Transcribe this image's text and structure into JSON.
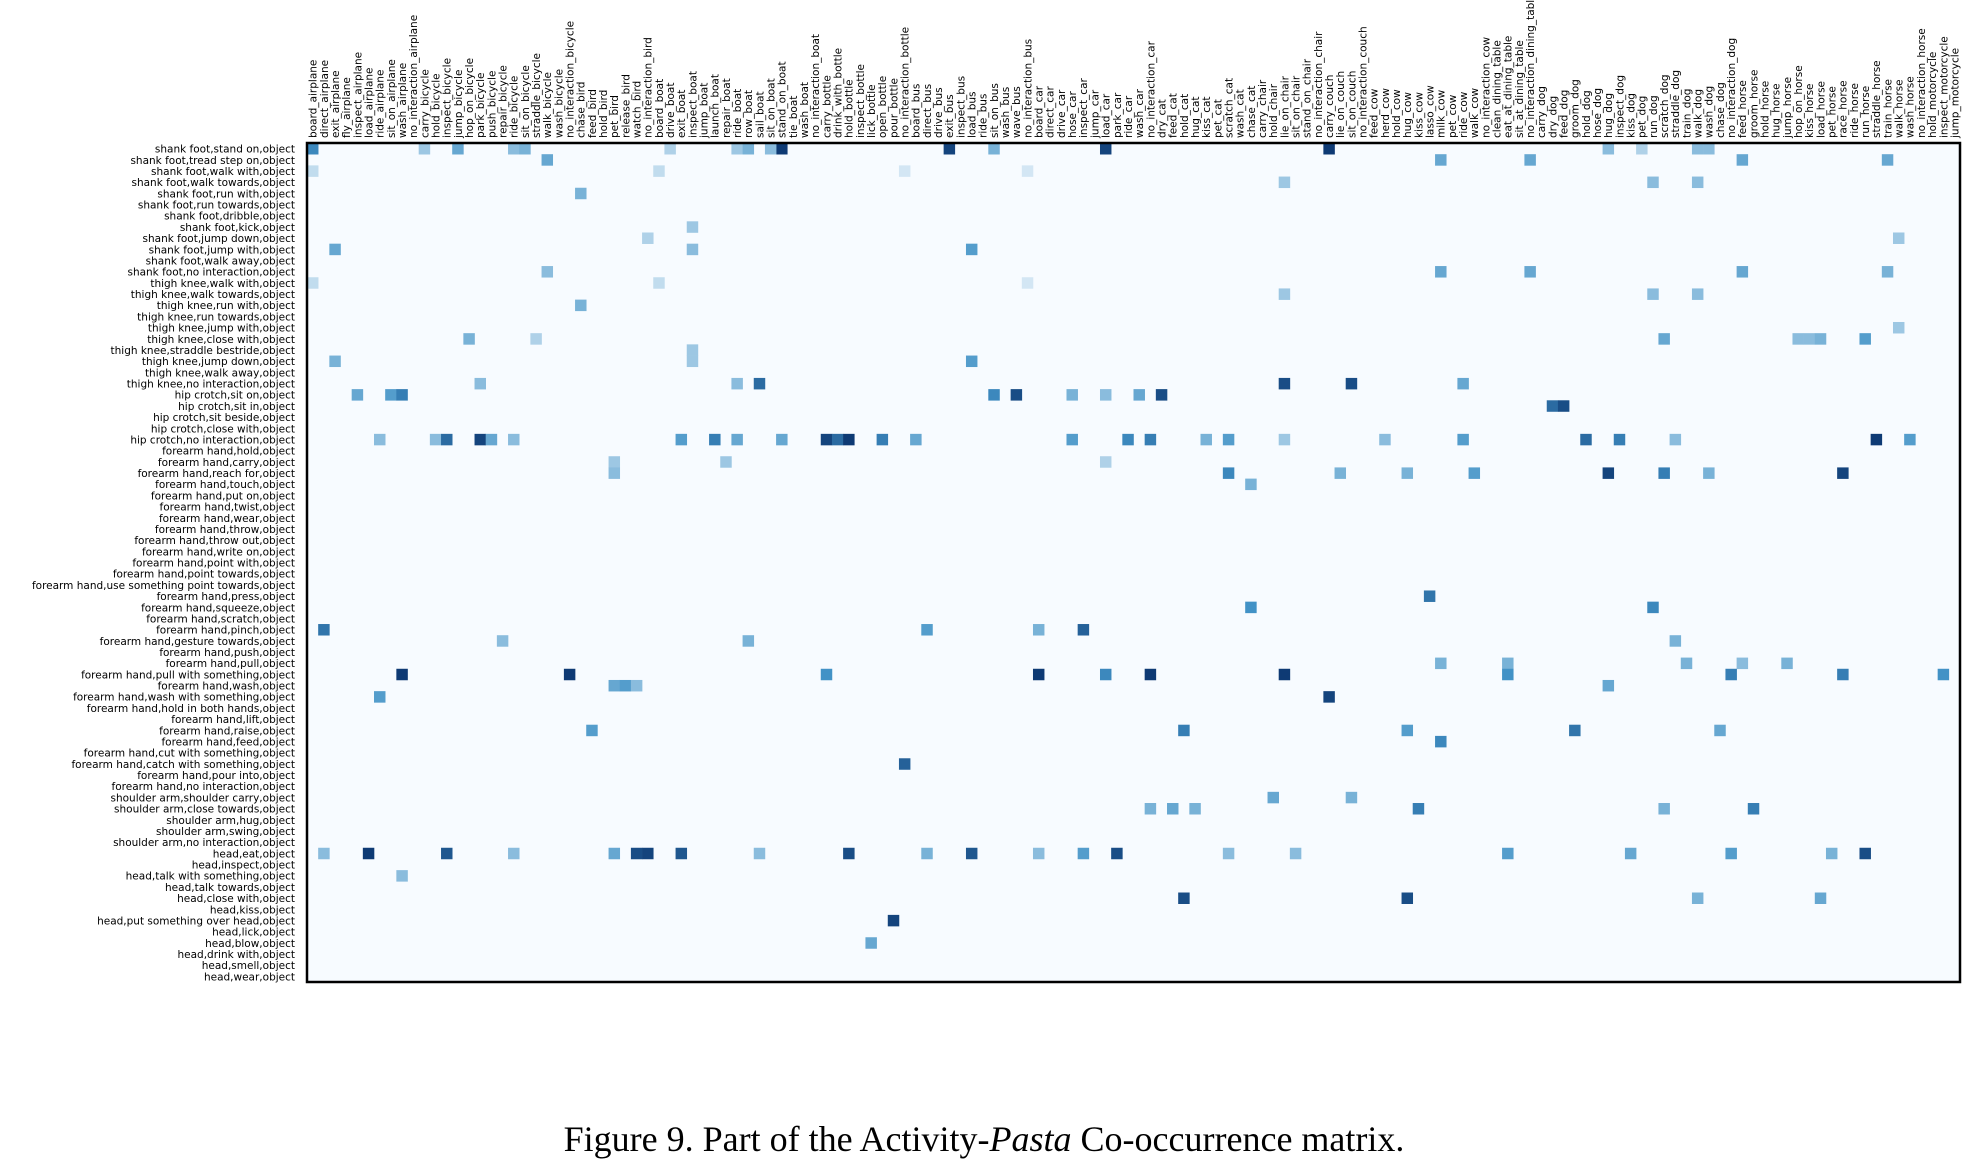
{
  "caption": {
    "prefix": "Figure 9. Part of the Activity-",
    "italic": "Pasta",
    "suffix": " Co-occurrence matrix."
  },
  "colors": {
    "low": "#f7fbff",
    "high": "#08306b",
    "border": "#000000",
    "text": "#000000"
  },
  "chart_data": {
    "type": "heatmap",
    "title": "",
    "colormap": "Blues",
    "x_tick_position": "top",
    "x_labels": [
      "board_airplane",
      "direct_airplane",
      "exit_airplane",
      "fly_airplane",
      "inspect_airplane",
      "load_airplane",
      "ride_airplane",
      "sit_on_airplane",
      "wash_airplane",
      "no_interaction_airplane",
      "carry_bicycle",
      "hold_bicycle",
      "inspect_bicycle",
      "jump_bicycle",
      "hop_on_bicycle",
      "park_bicycle",
      "push_bicycle",
      "repair_bicycle",
      "ride_bicycle",
      "sit_on_bicycle",
      "straddle_bicycle",
      "walk_bicycle",
      "wash_bicycle",
      "no_interaction_bicycle",
      "chase_bird",
      "feed_bird",
      "hold_bird",
      "pet_bird",
      "release_bird",
      "watch_bird",
      "no_interaction_bird",
      "board_boat",
      "drive_boat",
      "exit_boat",
      "inspect_boat",
      "jump_boat",
      "launch_boat",
      "repair_boat",
      "ride_boat",
      "row_boat",
      "sail_boat",
      "sit_on_boat",
      "stand_on_boat",
      "tie_boat",
      "wash_boat",
      "no_interaction_boat",
      "carry_bottle",
      "drink_with_bottle",
      "hold_bottle",
      "inspect_bottle",
      "lick_bottle",
      "open_bottle",
      "pour_bottle",
      "no_interaction_bottle",
      "board_bus",
      "direct_bus",
      "drive_bus",
      "exit_bus",
      "inspect_bus",
      "load_bus",
      "ride_bus",
      "sit_on_bus",
      "wash_bus",
      "wave_bus",
      "no_interaction_bus",
      "board_car",
      "direct_car",
      "drive_car",
      "hose_car",
      "inspect_car",
      "jump_car",
      "load_car",
      "park_car",
      "ride_car",
      "wash_car",
      "no_interaction_car",
      "dry_cat",
      "feed_cat",
      "hold_cat",
      "hug_cat",
      "kiss_cat",
      "pet_cat",
      "scratch_cat",
      "wash_cat",
      "chase_cat",
      "carry_chair",
      "hold_chair",
      "lie_on_chair",
      "sit_on_chair",
      "stand_on_chair",
      "no_interaction_chair",
      "carry_couch",
      "lie_on_couch",
      "sit_on_couch",
      "no_interaction_couch",
      "feed_cow",
      "herd_cow",
      "hold_cow",
      "hug_cow",
      "kiss_cow",
      "lasso_cow",
      "milk_cow",
      "pet_cow",
      "ride_cow",
      "walk_cow",
      "no_interaction_cow",
      "clean_dining_table",
      "eat_at_dining_table",
      "sit_at_dining_table",
      "no_interaction_dining_table",
      "carry_dog",
      "dry_dog",
      "feed_dog",
      "groom_dog",
      "hold_dog",
      "hose_dog",
      "hug_dog",
      "inspect_dog",
      "kiss_dog",
      "pet_dog",
      "run_dog",
      "scratch_dog",
      "straddle_dog",
      "train_dog",
      "walk_dog",
      "wash_dog",
      "chase_dog",
      "no_interaction_dog",
      "feed_horse",
      "groom_horse",
      "hold_horse",
      "hug_horse",
      "jump_horse",
      "hop_on_horse",
      "kiss_horse",
      "load_horse",
      "pet_horse",
      "race_horse",
      "ride_horse",
      "run_horse",
      "straddle_horse",
      "train_horse",
      "walk_horse",
      "wash_horse",
      "no_interaction_horse",
      "hold_motorcycle",
      "inspect_motorcycle",
      "jump_motorcycle"
    ],
    "y_labels": [
      "shank foot,stand on,object",
      "shank foot,tread step on,object",
      "shank foot,walk with,object",
      "shank foot,walk towards,object",
      "shank foot,run with,object",
      "shank foot,run towards,object",
      "shank foot,dribble,object",
      "shank foot,kick,object",
      "shank foot,jump down,object",
      "shank foot,jump with,object",
      "shank foot,walk away,object",
      "shank foot,no interaction,object",
      "thigh knee,walk with,object",
      "thigh knee,walk towards,object",
      "thigh knee,run with,object",
      "thigh knee,run towards,object",
      "thigh knee,jump with,object",
      "thigh knee,close with,object",
      "thigh knee,straddle bestride,object",
      "thigh knee,jump down,object",
      "thigh knee,walk away,object",
      "thigh knee,no interaction,object",
      "hip crotch,sit on,object",
      "hip crotch,sit in,object",
      "hip crotch,sit beside,object",
      "hip crotch,close with,object",
      "hip crotch,no interaction,object",
      "forearm hand,hold,object",
      "forearm hand,carry,object",
      "forearm hand,reach for,object",
      "forearm hand,touch,object",
      "forearm hand,put on,object",
      "forearm hand,twist,object",
      "forearm hand,wear,object",
      "forearm hand,throw,object",
      "forearm hand,throw out,object",
      "forearm hand,write on,object",
      "forearm hand,point with,object",
      "forearm hand,point towards,object",
      "forearm hand,use something point towards,object",
      "forearm hand,press,object",
      "forearm hand,squeeze,object",
      "forearm hand,scratch,object",
      "forearm hand,pinch,object",
      "forearm hand,gesture towards,object",
      "forearm hand,push,object",
      "forearm hand,pull,object",
      "forearm hand,pull with something,object",
      "forearm hand,wash,object",
      "forearm hand,wash with something,object",
      "forearm hand,hold in both hands,object",
      "forearm hand,lift,object",
      "forearm hand,raise,object",
      "forearm hand,feed,object",
      "forearm hand,cut with something,object",
      "forearm hand,catch with something,object",
      "forearm hand,pour into,object",
      "forearm hand,no interaction,object",
      "shoulder arm,shoulder carry,object",
      "shoulder arm,close towards,object",
      "shoulder arm,hug,object",
      "shoulder arm,swing,object",
      "shoulder arm,no interaction,object",
      "head,eat,object",
      "head,inspect,object",
      "head,talk with something,object",
      "head,talk towards,object",
      "head,close with,object",
      "head,kiss,object",
      "head,put something over head,object",
      "head,lick,object",
      "head,blow,object",
      "head,drink with,object",
      "head,smell,object",
      "head,wear,object"
    ],
    "cells": [
      [
        0,
        0,
        0.55
      ],
      [
        0,
        42,
        0.95
      ],
      [
        0,
        57,
        0.9
      ],
      [
        0,
        71,
        0.9
      ],
      [
        0,
        91,
        0.95
      ],
      [
        0,
        10,
        0.25
      ],
      [
        0,
        13,
        0.4
      ],
      [
        0,
        18,
        0.3
      ],
      [
        0,
        19,
        0.35
      ],
      [
        0,
        32,
        0.2
      ],
      [
        0,
        38,
        0.25
      ],
      [
        0,
        39,
        0.35
      ],
      [
        0,
        41,
        0.3
      ],
      [
        0,
        61,
        0.35
      ],
      [
        0,
        116,
        0.3
      ],
      [
        0,
        119,
        0.2
      ],
      [
        0,
        124,
        0.3
      ],
      [
        0,
        125,
        0.3
      ],
      [
        1,
        21,
        0.4
      ],
      [
        1,
        101,
        0.4
      ],
      [
        1,
        109,
        0.4
      ],
      [
        1,
        128,
        0.4
      ],
      [
        1,
        141,
        0.4
      ],
      [
        2,
        0,
        0.15
      ],
      [
        2,
        31,
        0.15
      ],
      [
        2,
        53,
        0.1
      ],
      [
        2,
        64,
        0.1
      ],
      [
        3,
        87,
        0.25
      ],
      [
        3,
        120,
        0.3
      ],
      [
        3,
        124,
        0.3
      ],
      [
        4,
        24,
        0.35
      ],
      [
        7,
        34,
        0.25
      ],
      [
        8,
        30,
        0.2
      ],
      [
        8,
        142,
        0.25
      ],
      [
        9,
        2,
        0.4
      ],
      [
        9,
        34,
        0.3
      ],
      [
        9,
        59,
        0.45
      ],
      [
        11,
        21,
        0.3
      ],
      [
        11,
        101,
        0.4
      ],
      [
        11,
        109,
        0.4
      ],
      [
        11,
        128,
        0.4
      ],
      [
        11,
        141,
        0.35
      ],
      [
        12,
        0,
        0.15
      ],
      [
        12,
        31,
        0.15
      ],
      [
        12,
        64,
        0.1
      ],
      [
        13,
        87,
        0.25
      ],
      [
        13,
        120,
        0.3
      ],
      [
        13,
        124,
        0.3
      ],
      [
        14,
        24,
        0.35
      ],
      [
        16,
        142,
        0.25
      ],
      [
        17,
        14,
        0.35
      ],
      [
        17,
        20,
        0.2
      ],
      [
        17,
        121,
        0.4
      ],
      [
        17,
        133,
        0.3
      ],
      [
        17,
        134,
        0.3
      ],
      [
        17,
        135,
        0.35
      ],
      [
        17,
        139,
        0.45
      ],
      [
        18,
        34,
        0.25
      ],
      [
        19,
        2,
        0.35
      ],
      [
        19,
        34,
        0.25
      ],
      [
        19,
        59,
        0.45
      ],
      [
        21,
        40,
        0.7
      ],
      [
        21,
        87,
        0.85
      ],
      [
        21,
        93,
        0.85
      ],
      [
        21,
        103,
        0.4
      ],
      [
        21,
        15,
        0.3
      ],
      [
        21,
        38,
        0.3
      ],
      [
        22,
        4,
        0.4
      ],
      [
        22,
        7,
        0.45
      ],
      [
        22,
        8,
        0.6
      ],
      [
        22,
        61,
        0.55
      ],
      [
        22,
        63,
        0.85
      ],
      [
        22,
        68,
        0.35
      ],
      [
        22,
        71,
        0.3
      ],
      [
        22,
        74,
        0.4
      ],
      [
        22,
        76,
        0.85
      ],
      [
        23,
        111,
        0.7
      ],
      [
        23,
        112,
        0.85
      ],
      [
        26,
        6,
        0.3
      ],
      [
        26,
        11,
        0.3
      ],
      [
        26,
        12,
        0.7
      ],
      [
        26,
        15,
        0.9
      ],
      [
        26,
        16,
        0.4
      ],
      [
        26,
        18,
        0.3
      ],
      [
        26,
        33,
        0.45
      ],
      [
        26,
        36,
        0.6
      ],
      [
        26,
        38,
        0.4
      ],
      [
        26,
        42,
        0.4
      ],
      [
        26,
        46,
        0.9
      ],
      [
        26,
        47,
        0.7
      ],
      [
        26,
        48,
        0.95
      ],
      [
        26,
        51,
        0.6
      ],
      [
        26,
        54,
        0.4
      ],
      [
        26,
        68,
        0.45
      ],
      [
        26,
        73,
        0.55
      ],
      [
        26,
        75,
        0.6
      ],
      [
        26,
        80,
        0.35
      ],
      [
        26,
        82,
        0.45
      ],
      [
        26,
        87,
        0.25
      ],
      [
        26,
        96,
        0.3
      ],
      [
        26,
        103,
        0.45
      ],
      [
        26,
        114,
        0.7
      ],
      [
        26,
        117,
        0.6
      ],
      [
        26,
        122,
        0.3
      ],
      [
        26,
        140,
        0.95
      ],
      [
        26,
        143,
        0.45
      ],
      [
        28,
        27,
        0.25
      ],
      [
        28,
        37,
        0.25
      ],
      [
        28,
        71,
        0.2
      ],
      [
        29,
        27,
        0.3
      ],
      [
        29,
        82,
        0.55
      ],
      [
        29,
        92,
        0.35
      ],
      [
        29,
        98,
        0.35
      ],
      [
        29,
        104,
        0.45
      ],
      [
        29,
        116,
        0.9
      ],
      [
        29,
        121,
        0.6
      ],
      [
        29,
        125,
        0.35
      ],
      [
        29,
        137,
        0.9
      ],
      [
        30,
        84,
        0.35
      ],
      [
        40,
        100,
        0.65
      ],
      [
        41,
        84,
        0.5
      ],
      [
        41,
        120,
        0.55
      ],
      [
        43,
        1,
        0.65
      ],
      [
        43,
        55,
        0.45
      ],
      [
        43,
        65,
        0.35
      ],
      [
        43,
        69,
        0.75
      ],
      [
        44,
        17,
        0.3
      ],
      [
        44,
        39,
        0.35
      ],
      [
        44,
        122,
        0.35
      ],
      [
        46,
        101,
        0.35
      ],
      [
        46,
        107,
        0.35
      ],
      [
        46,
        123,
        0.35
      ],
      [
        46,
        128,
        0.3
      ],
      [
        46,
        132,
        0.35
      ],
      [
        47,
        8,
        0.95
      ],
      [
        47,
        23,
        0.95
      ],
      [
        47,
        46,
        0.5
      ],
      [
        47,
        65,
        0.95
      ],
      [
        47,
        71,
        0.55
      ],
      [
        47,
        75,
        0.95
      ],
      [
        47,
        87,
        0.95
      ],
      [
        47,
        107,
        0.5
      ],
      [
        47,
        127,
        0.6
      ],
      [
        47,
        137,
        0.6
      ],
      [
        47,
        146,
        0.5
      ],
      [
        48,
        27,
        0.4
      ],
      [
        48,
        28,
        0.45
      ],
      [
        48,
        29,
        0.3
      ],
      [
        48,
        116,
        0.4
      ],
      [
        49,
        6,
        0.45
      ],
      [
        49,
        91,
        0.9
      ],
      [
        52,
        25,
        0.45
      ],
      [
        52,
        78,
        0.6
      ],
      [
        52,
        98,
        0.45
      ],
      [
        52,
        113,
        0.65
      ],
      [
        52,
        126,
        0.4
      ],
      [
        53,
        101,
        0.55
      ],
      [
        55,
        53,
        0.75
      ],
      [
        58,
        86,
        0.4
      ],
      [
        58,
        93,
        0.35
      ],
      [
        59,
        75,
        0.35
      ],
      [
        59,
        77,
        0.4
      ],
      [
        59,
        79,
        0.35
      ],
      [
        59,
        99,
        0.6
      ],
      [
        59,
        121,
        0.35
      ],
      [
        59,
        129,
        0.6
      ],
      [
        63,
        1,
        0.3
      ],
      [
        63,
        5,
        0.95
      ],
      [
        63,
        12,
        0.8
      ],
      [
        63,
        18,
        0.3
      ],
      [
        63,
        27,
        0.4
      ],
      [
        63,
        29,
        0.85
      ],
      [
        63,
        30,
        0.9
      ],
      [
        63,
        33,
        0.8
      ],
      [
        63,
        40,
        0.3
      ],
      [
        63,
        48,
        0.85
      ],
      [
        63,
        55,
        0.35
      ],
      [
        63,
        59,
        0.8
      ],
      [
        63,
        65,
        0.3
      ],
      [
        63,
        69,
        0.45
      ],
      [
        63,
        72,
        0.85
      ],
      [
        63,
        82,
        0.3
      ],
      [
        63,
        88,
        0.3
      ],
      [
        63,
        107,
        0.45
      ],
      [
        63,
        118,
        0.4
      ],
      [
        63,
        127,
        0.45
      ],
      [
        63,
        136,
        0.35
      ],
      [
        63,
        139,
        0.85
      ],
      [
        65,
        8,
        0.3
      ],
      [
        67,
        78,
        0.85
      ],
      [
        67,
        98,
        0.85
      ],
      [
        67,
        124,
        0.35
      ],
      [
        67,
        135,
        0.4
      ],
      [
        69,
        52,
        0.9
      ],
      [
        71,
        50,
        0.4
      ]
    ],
    "value_range": [
      0,
      1
    ]
  }
}
